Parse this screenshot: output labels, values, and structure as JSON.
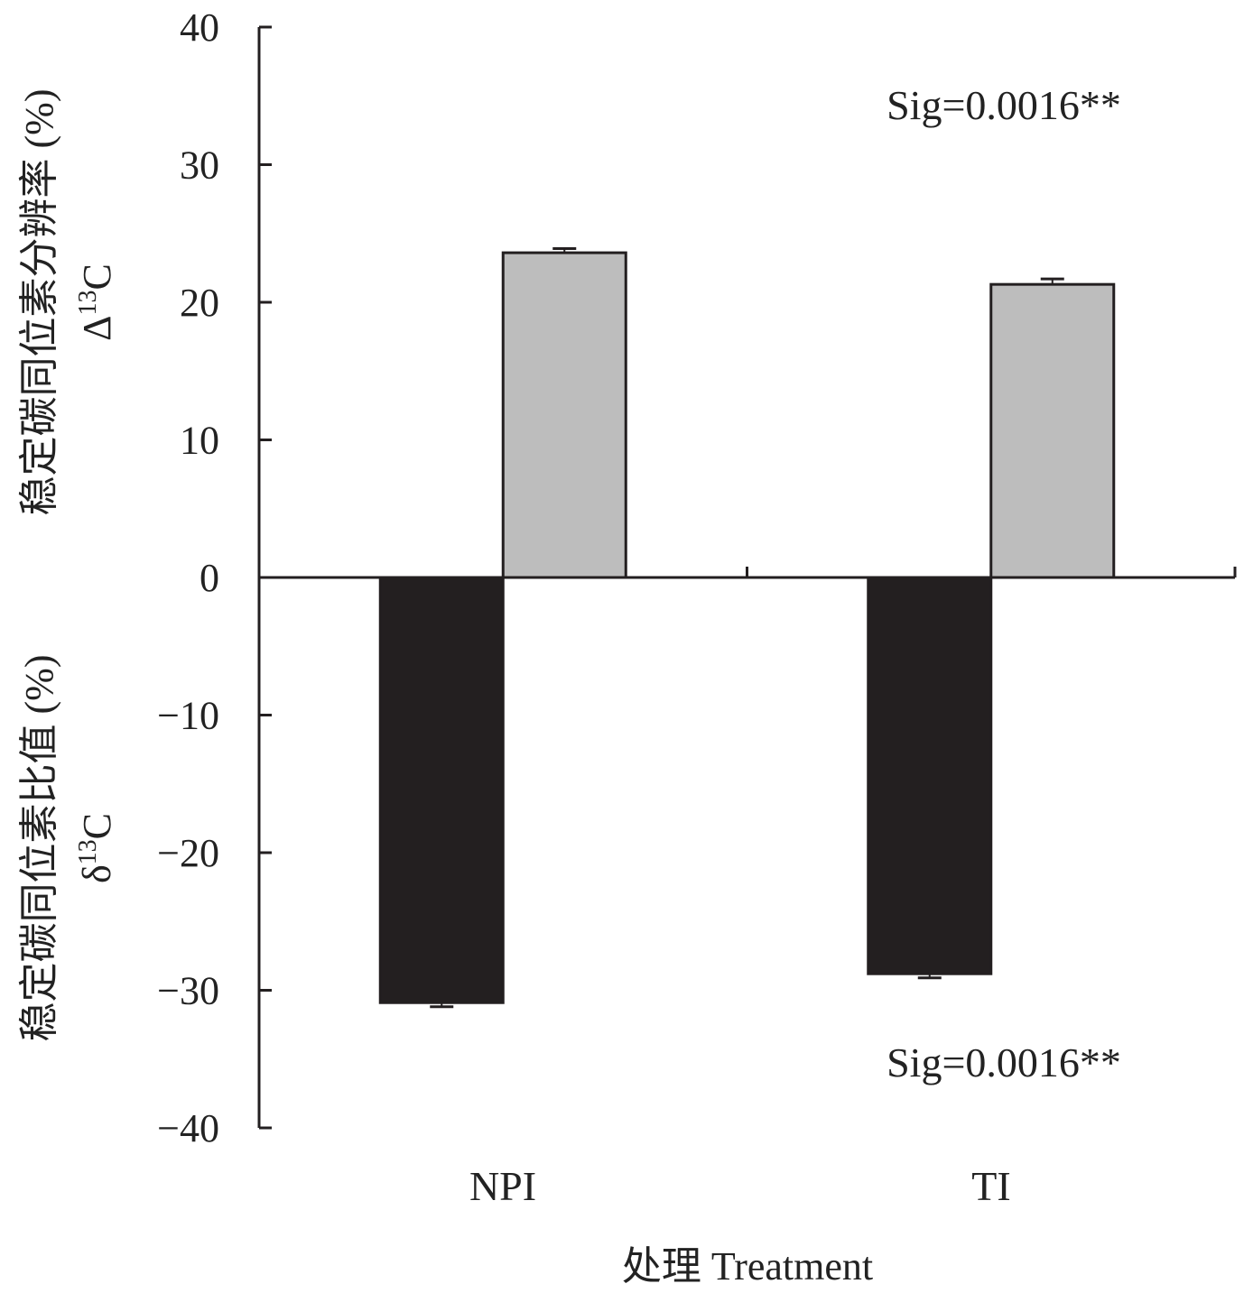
{
  "chart_data": {
    "type": "bar",
    "categories": [
      "NPI",
      "TI"
    ],
    "series": [
      {
        "values": [
          23.6,
          21.3
        ],
        "errors": [
          0.3,
          0.4
        ],
        "color": "#bdbdbd"
      },
      {
        "values": [
          -30.9,
          -28.8
        ],
        "errors": [
          0.3,
          0.3
        ],
        "color": "#231f20"
      }
    ],
    "ylim": [
      -40,
      40
    ],
    "yticks": [
      40,
      30,
      20,
      10,
      0,
      -10,
      -20,
      -30,
      -40
    ],
    "ytick_labels": [
      "40",
      "30",
      "20",
      "10",
      "0",
      "−10",
      "−20",
      "−30",
      "−40"
    ],
    "xlabel": "处理 Treatment",
    "ylabel_upper": {
      "text": "稳定碳同位素分辨率 (%)",
      "symbol": "Δ",
      "mass": "13",
      "element": "C"
    },
    "ylabel_lower": {
      "text": "稳定碳同位素比值 (%)",
      "symbol": "δ",
      "mass": "13",
      "element": "C"
    },
    "annotations": [
      "Sig=0.0016**",
      "Sig=0.0016**"
    ],
    "grid": false
  }
}
